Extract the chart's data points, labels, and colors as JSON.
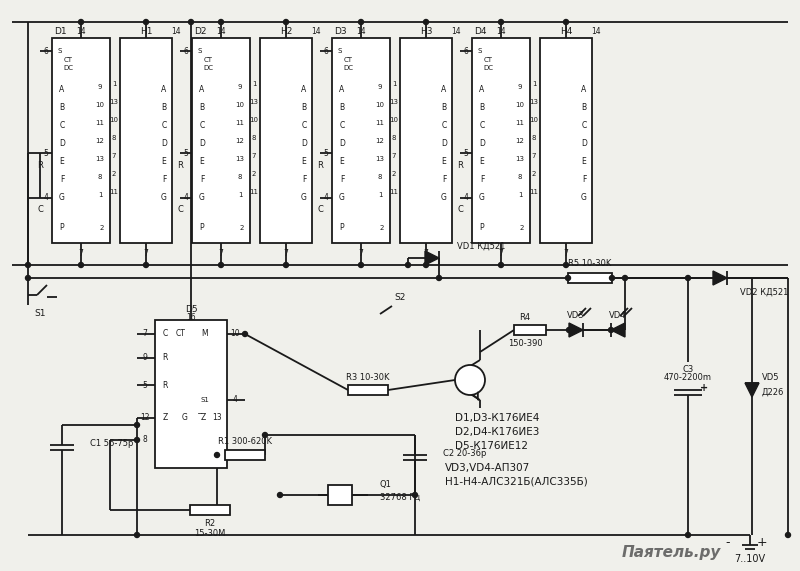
{
  "bg_color": "#f0f0eb",
  "line_color": "#1a1a1a",
  "watermark": "Паятель.ру",
  "ann1": "D1,D3-К176ИЕ4",
  "ann2": "D2,D4-К176ИЕ3",
  "ann3": "D5-К176ИЕ12",
  "ann4": "VD3,VD4-АП307",
  "ann5": "H1-H4-АЛС321Б(АЛС335Б)",
  "vd1": "VD1 КД521",
  "vd2": "VD2 КД521",
  "vd5": "Д226",
  "q1": "32768 Гц",
  "power": "7..10V"
}
